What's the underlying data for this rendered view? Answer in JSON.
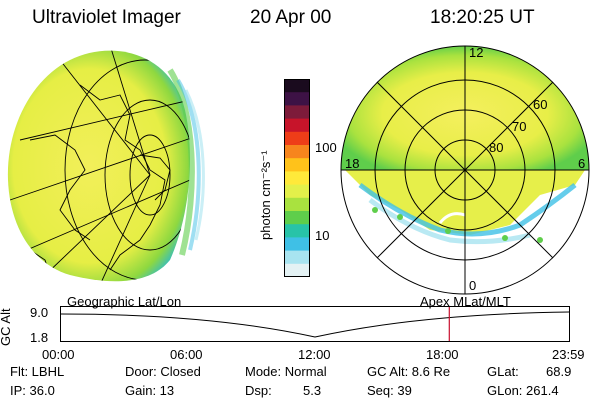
{
  "header": {
    "title": "Ultraviolet Imager",
    "date": "20 Apr 00",
    "time": "18:20:25 UT"
  },
  "colorbar": {
    "unit_label": "photon cm⁻²s⁻¹",
    "ticks": [
      "100",
      "10"
    ],
    "colors": [
      "#1a0b1e",
      "#3d1245",
      "#7d1b3a",
      "#c7142a",
      "#ee3d18",
      "#f7851d",
      "#ffc21a",
      "#ffe93a",
      "#e3f04a",
      "#a9e23f",
      "#5fce4b",
      "#28c3a8",
      "#3fc0e6",
      "#a8e4f0",
      "#e4f2f4"
    ]
  },
  "left_panel": {
    "projection_label": "Geographic Lat/Lon"
  },
  "right_panel": {
    "projection_label": "Apex MLat/MLT",
    "clock_labels": {
      "top": "12",
      "left": "18",
      "right": "6",
      "bottom": "0"
    },
    "lat_labels": [
      "60",
      "70",
      "80"
    ]
  },
  "timeline": {
    "y_axis_label": "GC Alt",
    "y_ticks": [
      "9.0",
      "1.8"
    ],
    "x_ticks": [
      "00:00",
      "06:00",
      "12:00",
      "18:00",
      "23:59"
    ],
    "marker_time": "18:20"
  },
  "info": {
    "flt": "Flt: LBHL",
    "ip": "IP: 36.0",
    "door": "Door: Closed",
    "gain": "Gain: 13",
    "mode": "Mode: Normal",
    "dsp_label": "Dsp:",
    "dsp_value": "5.3",
    "gcalt": "GC Alt: 8.6 Re",
    "seq": "Seq: 39",
    "glat": "GLat:",
    "glat_value": "68.9",
    "glon": "GLon: 261.4"
  },
  "colors": {
    "marker": "#c8102e",
    "auroral_main": "#e9ef4a",
    "auroral_edge": "#3fc0e6"
  }
}
